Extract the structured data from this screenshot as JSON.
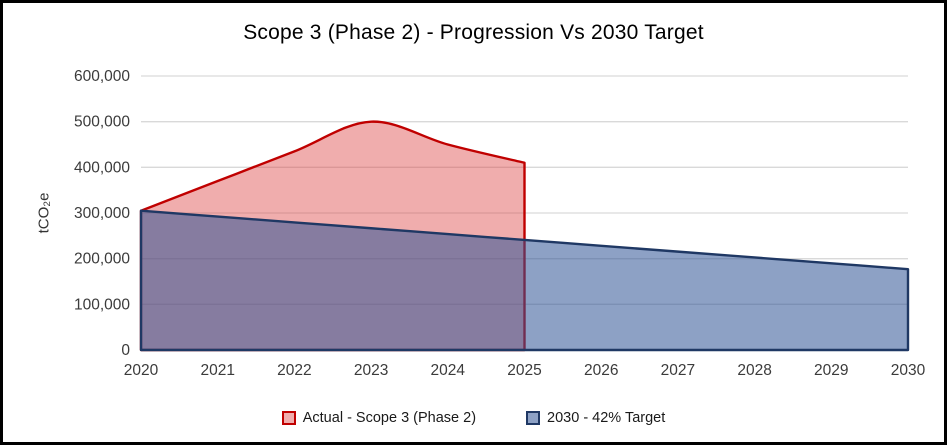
{
  "chart_data": {
    "type": "area",
    "title": "Scope 3 (Phase 2) - Progression Vs 2030 Target",
    "xlabel": "",
    "ylabel": "tCO₂e",
    "x_categories": [
      "2020",
      "2021",
      "2022",
      "2023",
      "2024",
      "2025",
      "2026",
      "2027",
      "2028",
      "2029",
      "2030"
    ],
    "xlim": [
      2020,
      2030
    ],
    "ylim": [
      0,
      600000
    ],
    "ytick_step": 100000,
    "ytick_labels": [
      "0",
      "100,000",
      "200,000",
      "300,000",
      "400,000",
      "500,000",
      "600,000"
    ],
    "grid": true,
    "legend_position": "bottom",
    "smoothed_lines": true,
    "series": [
      {
        "name": "Actual - Scope 3 (Phase 2)",
        "x": [
          2020,
          2021,
          2022,
          2023,
          2024,
          2025
        ],
        "values": [
          305000,
          370000,
          435000,
          500000,
          450000,
          410000
        ],
        "line_color": "#C00000",
        "fill_color": "rgba(220,60,60,0.42)"
      },
      {
        "name": "2030 - 42% Target",
        "x": [
          2020,
          2021,
          2022,
          2023,
          2024,
          2025,
          2026,
          2027,
          2028,
          2029,
          2030
        ],
        "values": [
          305000,
          292200,
          279400,
          266600,
          253800,
          241000,
          228200,
          215400,
          202600,
          189800,
          177000
        ],
        "line_color": "#1F3864",
        "fill_color": "rgba(48,84,150,0.55)"
      }
    ],
    "colors": {
      "gridline": "#D9D9D9",
      "axis_text": "#3b3b3b",
      "title_text": "#000000",
      "frame_border": "#000000"
    }
  }
}
